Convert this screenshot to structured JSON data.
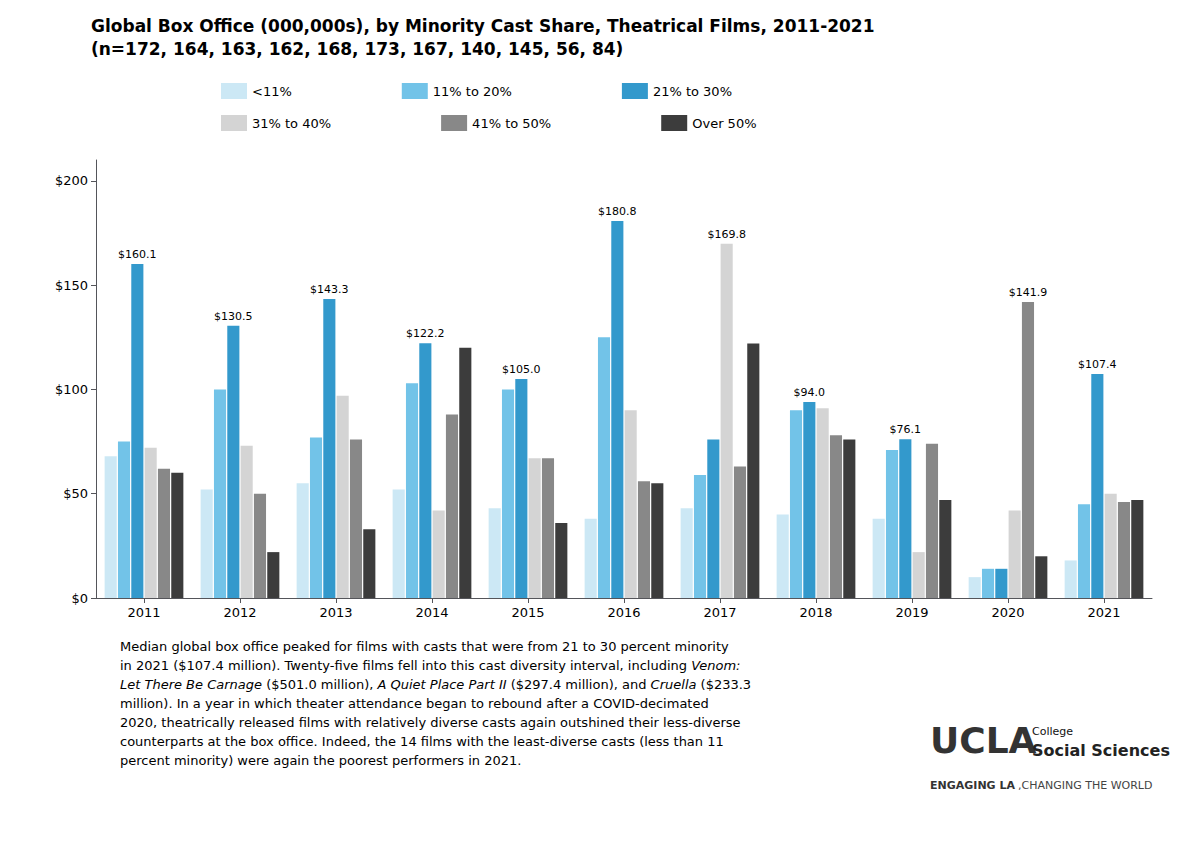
{
  "chart_data": {
    "type": "bar",
    "title": "Global Box Office (000,000s), by Minority Cast Share, Theatrical Films, 2011-2021",
    "subtitle": "(n=172, 164, 163, 162, 168, 173, 167, 140, 145, 56, 84)",
    "categories": [
      "2011",
      "2012",
      "2013",
      "2014",
      "2015",
      "2016",
      "2017",
      "2018",
      "2019",
      "2020",
      "2021"
    ],
    "series": [
      {
        "name": "<11%",
        "color": "#cce8f5",
        "values": [
          68,
          52,
          55,
          52,
          43,
          38,
          43,
          40,
          38,
          10,
          18
        ],
        "value_labels": [
          null,
          null,
          null,
          null,
          null,
          null,
          null,
          null,
          null,
          null,
          null
        ]
      },
      {
        "name": "11% to 20%",
        "color": "#72c3e8",
        "values": [
          75,
          100,
          77,
          103,
          100,
          125,
          59,
          90,
          71,
          14,
          45
        ],
        "value_labels": [
          null,
          null,
          null,
          null,
          null,
          null,
          null,
          null,
          null,
          null,
          null
        ]
      },
      {
        "name": "21% to 30%",
        "color": "#3399cc",
        "values": [
          160.1,
          130.5,
          143.3,
          122.2,
          105.0,
          180.8,
          76,
          94.0,
          76.1,
          14,
          107.4
        ],
        "value_labels": [
          "$160.1",
          "$130.5",
          "$143.3",
          "$122.2",
          "$105.0",
          "$180.8",
          null,
          "$94.0",
          "$76.1",
          null,
          "$107.4"
        ]
      },
      {
        "name": "31% to 40%",
        "color": "#d4d4d4",
        "values": [
          72,
          73,
          97,
          42,
          67,
          90,
          169.8,
          91,
          22,
          42,
          50
        ],
        "value_labels": [
          null,
          null,
          null,
          null,
          null,
          null,
          "$169.8",
          null,
          null,
          null,
          null
        ]
      },
      {
        "name": "41% to 50%",
        "color": "#888888",
        "values": [
          62,
          50,
          76,
          88,
          67,
          56,
          63,
          78,
          74,
          141.9,
          46
        ],
        "value_labels": [
          null,
          null,
          null,
          null,
          null,
          null,
          null,
          null,
          null,
          "$141.9",
          null
        ]
      },
      {
        "name": "Over 50%",
        "color": "#3c3c3c",
        "values": [
          60,
          22,
          33,
          120,
          36,
          55,
          122,
          76,
          47,
          20,
          47
        ],
        "value_labels": [
          null,
          null,
          null,
          null,
          null,
          null,
          null,
          null,
          null,
          null,
          null
        ]
      }
    ],
    "ylim": [
      0,
      210
    ],
    "yticks": [
      {
        "value": 0,
        "label": "$0"
      },
      {
        "value": 50,
        "label": "$50"
      },
      {
        "value": 100,
        "label": "$100"
      },
      {
        "value": 150,
        "label": "$150"
      },
      {
        "value": 200,
        "label": "$200"
      }
    ],
    "grid": false,
    "legend": "top",
    "annotation": [
      "Median global box office peaked for films with casts that were from 21 to 30 percent minority\nin 2021 ($107.4 million). Twenty-five films fell into this cast diversity interval, including ",
      "Venom:\nLet There Be Carnage",
      " ($501.0 million), ",
      "A Quiet Place Part II",
      " ($297.4 million), and ",
      "Cruella",
      " ($233.3\nmillion). In a year in which theater attendance began to rebound after a COVID-decimated\n2020, theatrically released films with relatively diverse casts again outshined their less-diverse\ncounterparts at the box office. Indeed, the 14 films with the least-diverse casts (less than 11\npercent minority) were again the poorest performers in 2021."
    ],
    "branding": [
      "UCLA",
      "College",
      "Social Sciences",
      "ENGAGING LA",
      ",CHANGING THE WORLD"
    ]
  }
}
